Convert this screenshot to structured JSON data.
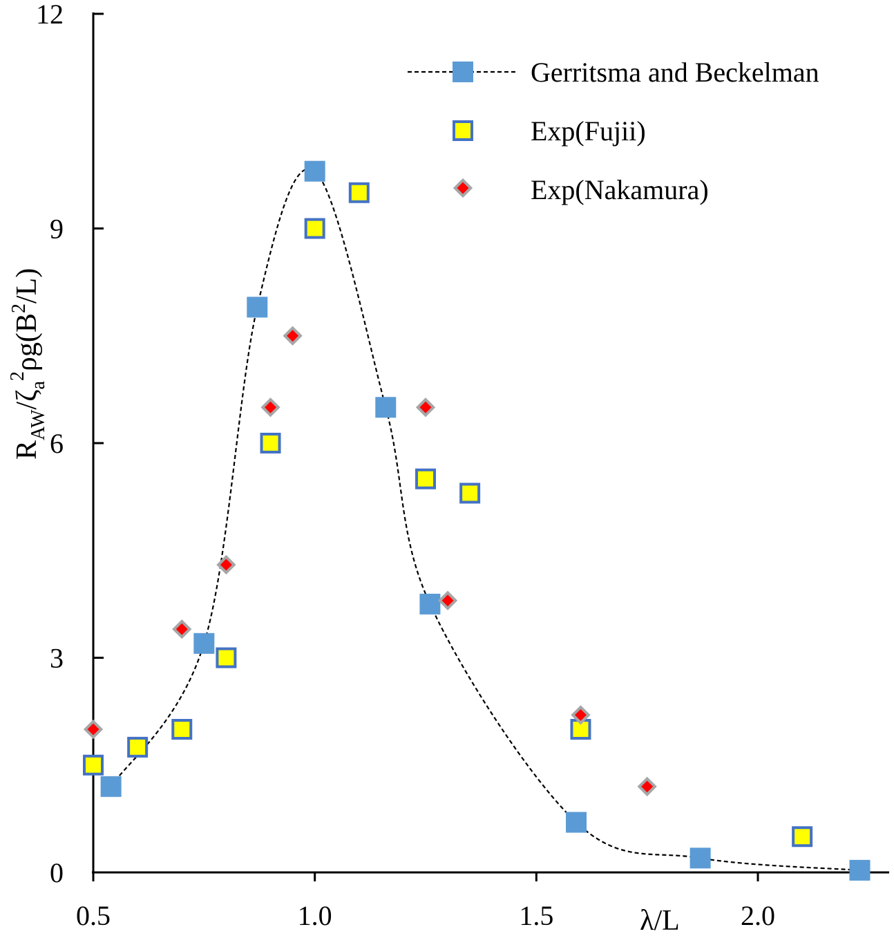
{
  "chart_data": {
    "type": "scatter",
    "title": "",
    "xlabel": "λ/L",
    "ylabel": {
      "main": "R",
      "sub1": "AW",
      "slash": "/ζ",
      "sub2": "a",
      "sup1": "2",
      "mid": "ρg(B",
      "sup2": "2",
      "end": "/L)"
    },
    "xlim": [
      0.5,
      2.25
    ],
    "ylim": [
      0,
      12
    ],
    "xticks": [
      0.5,
      1.0,
      1.5,
      2.0
    ],
    "xtick_labels": [
      "0.5",
      "1.0",
      "1.5",
      "2.0"
    ],
    "yticks": [
      0,
      3,
      6,
      9,
      12
    ],
    "ytick_labels": [
      "0",
      "3",
      "6",
      "9",
      "12"
    ],
    "grid": false,
    "legend_position": "top-right",
    "series": [
      {
        "name": "Gerritsma and Beckelman",
        "marker": "square",
        "line": "dashed",
        "color": "#5b9bd5",
        "x": [
          0.54,
          0.75,
          0.87,
          1.0,
          1.16,
          1.26,
          1.59,
          1.87,
          2.23
        ],
        "y": [
          1.2,
          3.2,
          7.9,
          9.8,
          6.5,
          3.75,
          0.7,
          0.2,
          0.03
        ]
      },
      {
        "name": "Exp(Fujii)",
        "marker": "square-outlined",
        "color": "#ffff00",
        "edge_color": "#4472c4",
        "x": [
          0.5,
          0.6,
          0.7,
          0.8,
          0.9,
          1.0,
          1.1,
          1.25,
          1.35,
          1.6,
          2.1
        ],
        "y": [
          1.5,
          1.75,
          2.0,
          3.0,
          6.0,
          9.0,
          9.5,
          5.5,
          5.3,
          2.0,
          0.5
        ]
      },
      {
        "name": "Exp(Nakamura)",
        "marker": "diamond",
        "color": "#ff0000",
        "edge_color": "#a6a6a6",
        "x": [
          0.5,
          0.7,
          0.8,
          0.9,
          0.95,
          1.25,
          1.3,
          1.6,
          1.75
        ],
        "y": [
          2.0,
          3.4,
          4.3,
          6.5,
          7.5,
          6.5,
          3.8,
          2.2,
          1.2
        ]
      }
    ]
  }
}
